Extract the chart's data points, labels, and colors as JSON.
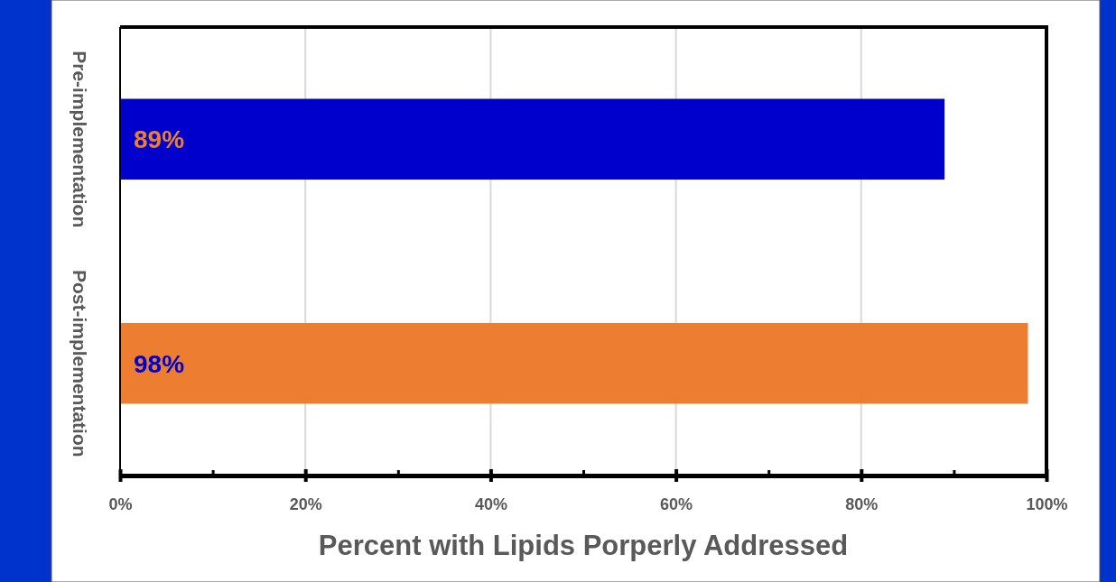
{
  "chart_data": {
    "type": "bar",
    "orientation": "horizontal",
    "categories": [
      "Pre-implementation",
      "Post-implementation"
    ],
    "values": [
      89,
      98
    ],
    "colors": [
      "#0000cc",
      "#ed7d31"
    ],
    "value_labels": [
      "89%",
      "98%"
    ],
    "xlabel": "Percent with Lipids Porperly Addressed",
    "xlim": [
      0,
      100
    ],
    "xticks": [
      {
        "value": 0,
        "label": "0%"
      },
      {
        "value": 10,
        "label": null
      },
      {
        "value": 20,
        "label": "20%"
      },
      {
        "value": 30,
        "label": null
      },
      {
        "value": 40,
        "label": "40%"
      },
      {
        "value": 50,
        "label": null
      },
      {
        "value": 60,
        "label": "60%"
      },
      {
        "value": 70,
        "label": null
      },
      {
        "value": 80,
        "label": "80%"
      },
      {
        "value": 90,
        "label": null
      },
      {
        "value": 100,
        "label": "100%"
      }
    ],
    "grid": "x"
  }
}
